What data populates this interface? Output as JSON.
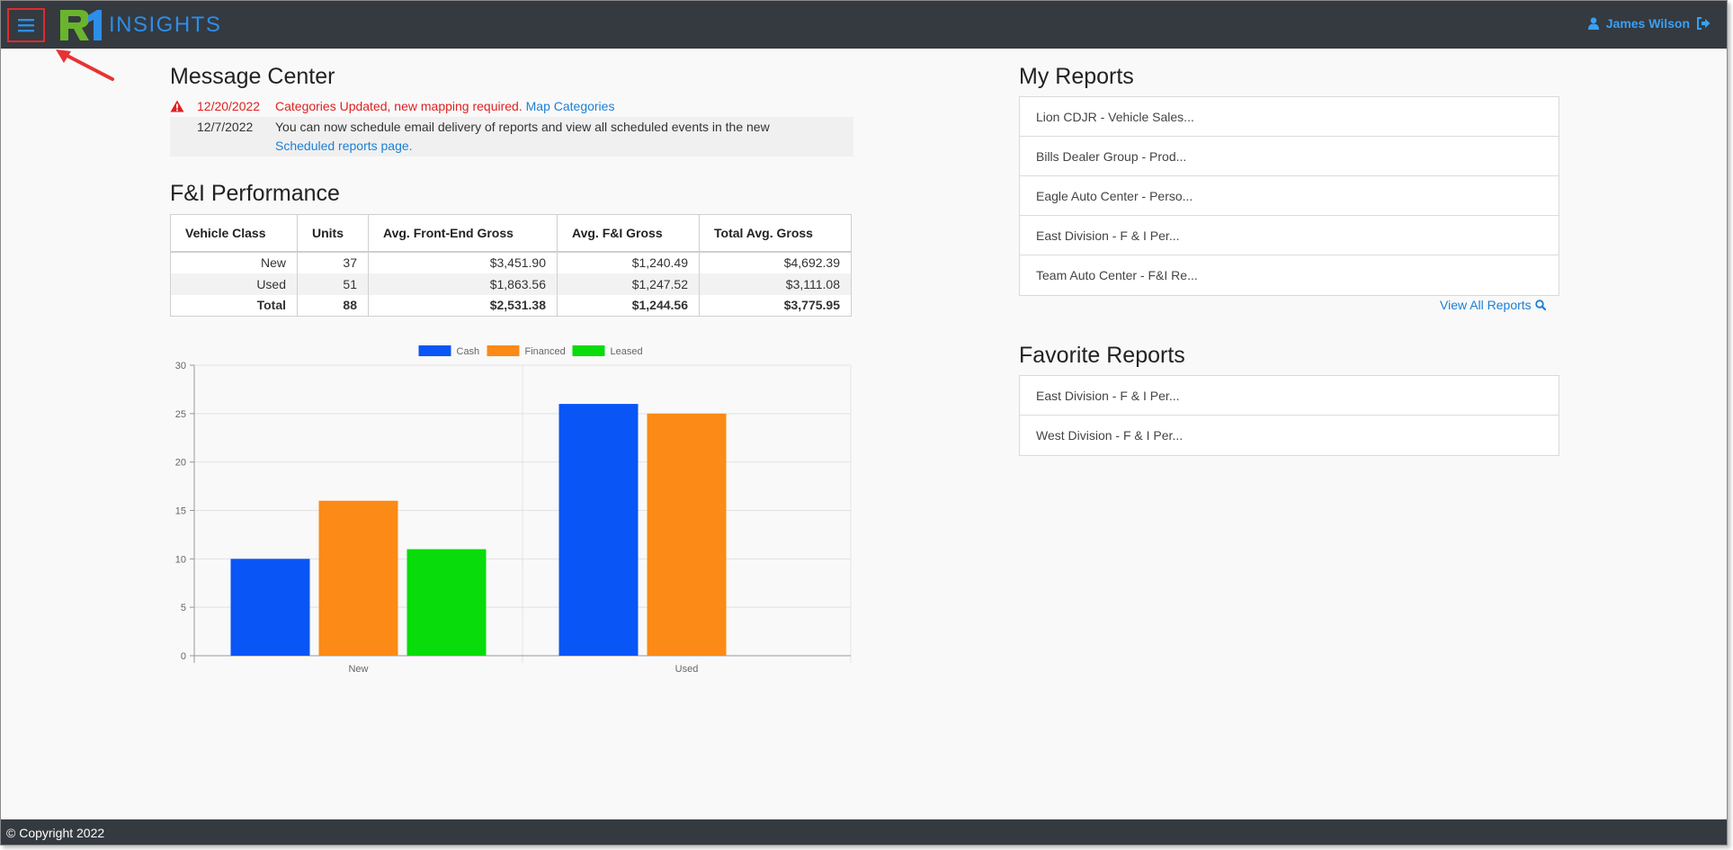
{
  "app": {
    "logo_text": "INSIGHTS",
    "user_name": "James Wilson"
  },
  "message_center": {
    "title": "Message Center",
    "messages": [
      {
        "date": "12/20/2022",
        "text": "Categories Updated, new mapping required.",
        "link": "Map Categories",
        "alert": true
      },
      {
        "date": "12/7/2022",
        "text": "You can now schedule email delivery of reports and view all scheduled events in the new",
        "link": "Scheduled reports page",
        "after_link": ".",
        "alert": false
      }
    ]
  },
  "performance": {
    "title": "F&I Performance",
    "columns": [
      "Vehicle Class",
      "Units",
      "Avg. Front-End Gross",
      "Avg. F&I Gross",
      "Total Avg. Gross"
    ],
    "rows": [
      [
        "New",
        "37",
        "$3,451.90",
        "$1,240.49",
        "$4,692.39"
      ],
      [
        "Used",
        "51",
        "$1,863.56",
        "$1,247.52",
        "$3,111.08"
      ],
      [
        "Total",
        "88",
        "$2,531.38",
        "$1,244.56",
        "$3,775.95"
      ]
    ]
  },
  "chart_data": {
    "type": "bar",
    "categories": [
      "New",
      "Used"
    ],
    "series": [
      {
        "name": "Cash",
        "values": [
          10,
          26
        ],
        "color": "#0a55f5"
      },
      {
        "name": "Financed",
        "values": [
          16,
          25
        ],
        "color": "#fb8a16"
      },
      {
        "name": "Leased",
        "values": [
          11,
          0
        ],
        "color": "#08dc0a"
      }
    ],
    "ylim": [
      0,
      30
    ],
    "yticks": [
      0,
      5,
      10,
      15,
      20,
      25,
      30
    ],
    "legend": "top",
    "grid": true
  },
  "my_reports": {
    "title": "My Reports",
    "items": [
      "Lion CDJR - Vehicle Sales...",
      "Bills Dealer Group - Prod...",
      "Eagle Auto Center - Perso...",
      "East Division - F & I Per...",
      "Team Auto Center - F&I Re..."
    ],
    "view_all": "View All Reports"
  },
  "favorite_reports": {
    "title": "Favorite Reports",
    "items": [
      "East Division - F & I Per...",
      "West Division - F & I Per..."
    ]
  },
  "footer": {
    "text": "© Copyright 2022"
  },
  "icons": {
    "menu": "hamburger-icon",
    "user": "user-icon",
    "logout": "sign-out-icon",
    "alert": "warning-icon",
    "search": "search-icon",
    "annotation": "red-arrow"
  },
  "colors": {
    "navbar": "#343a40",
    "accent": "#1c7fd6",
    "alert": "#e02020",
    "highlight_box": "#e12b2b"
  }
}
